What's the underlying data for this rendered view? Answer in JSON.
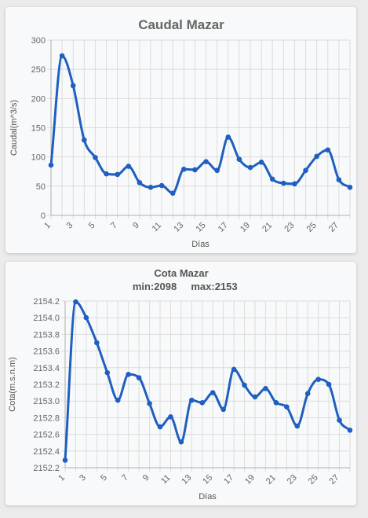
{
  "charts": [
    {
      "id": "chart-caudal",
      "type": "line",
      "title": "Caudal Mazar",
      "subtitle_parts": [],
      "xlabel": "Días",
      "ylabel": "Caudal(m^3/s)",
      "ylim": [
        0,
        300
      ],
      "yticks": [
        0,
        50,
        100,
        150,
        200,
        250,
        300
      ],
      "ytick_labels": [
        "0",
        "50",
        "100",
        "150",
        "200",
        "250",
        "300"
      ],
      "xlim": [
        1,
        28
      ],
      "xtick_labels": [
        "1",
        "3",
        "5",
        "7",
        "9",
        "11",
        "13",
        "15",
        "17",
        "19",
        "21",
        "23",
        "25",
        "27"
      ],
      "grid": true,
      "line_color": "#1f5fbf",
      "x": [
        1,
        2,
        3,
        4,
        5,
        6,
        7,
        8,
        9,
        10,
        11,
        12,
        13,
        14,
        15,
        16,
        17,
        18,
        19,
        20,
        21,
        22,
        23,
        24,
        25,
        26,
        27,
        28
      ],
      "values": [
        86,
        273,
        222,
        129,
        99,
        71,
        70,
        84,
        56,
        48,
        51,
        38,
        79,
        78,
        92,
        77,
        134,
        96,
        82,
        91,
        62,
        55,
        54,
        77,
        101,
        112,
        61,
        48
      ]
    },
    {
      "id": "chart-cota",
      "type": "line",
      "title": "Cota Mazar",
      "subtitle_parts": [
        "min:2098",
        "max:2153"
      ],
      "xlabel": "Días",
      "ylabel": "Cota(m.s.n.m)",
      "ylim": [
        2152.2,
        2154.2
      ],
      "yticks": [
        2152.2,
        2152.4,
        2152.6,
        2152.8,
        2153.0,
        2153.2,
        2153.4,
        2153.6,
        2153.8,
        2154.0,
        2154.2
      ],
      "ytick_labels": [
        "2152.2",
        "2152.4",
        "2152.6",
        "2152.8",
        "2153.0",
        "2153.2",
        "2153.4",
        "2153.6",
        "2153.8",
        "2154.0",
        "2154.2"
      ],
      "xlim": [
        1,
        28
      ],
      "xtick_labels": [
        "1",
        "3",
        "5",
        "7",
        "9",
        "11",
        "13",
        "15",
        "17",
        "19",
        "21",
        "23",
        "25",
        "27"
      ],
      "grid": true,
      "line_color": "#1f5fbf",
      "x": [
        1,
        2,
        3,
        4,
        5,
        6,
        7,
        8,
        9,
        10,
        11,
        12,
        13,
        14,
        15,
        16,
        17,
        18,
        19,
        20,
        21,
        22,
        23,
        24,
        25,
        26,
        27,
        28
      ],
      "values": [
        2152.29,
        2154.19,
        2154.0,
        2153.7,
        2153.34,
        2153.01,
        2153.32,
        2153.28,
        2152.97,
        2152.69,
        2152.81,
        2152.51,
        2153.01,
        2152.98,
        2153.1,
        2152.9,
        2153.38,
        2153.19,
        2153.05,
        2153.15,
        2152.98,
        2152.93,
        2152.7,
        2153.09,
        2153.26,
        2153.2,
        2152.77,
        2152.65
      ]
    }
  ]
}
